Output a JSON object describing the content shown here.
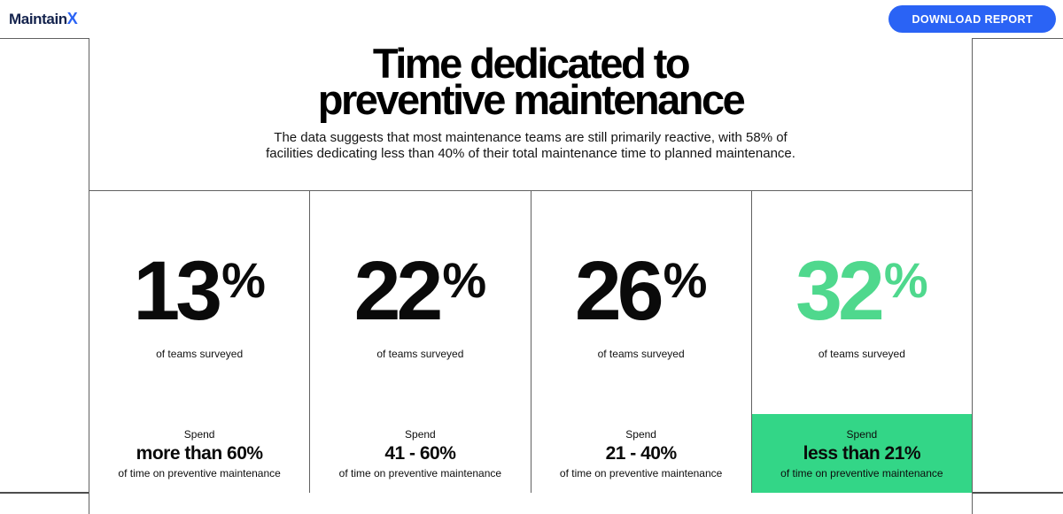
{
  "topbar": {
    "logo": {
      "text_main": "Maintain",
      "text_x": "X"
    },
    "download_button": "DOWNLOAD REPORT"
  },
  "section": {
    "title_line1": "Time dedicated to",
    "title_line2": "preventive maintenance",
    "subtitle": "The data suggests that most maintenance teams are still primarily reactive, with 58% of facilities dedicating less than 40% of their total maintenance time to planned maintenance."
  },
  "stats": {
    "columns": [
      {
        "value": "13",
        "unit": "%",
        "caption": "of teams surveyed",
        "label_prefix": "Spend",
        "label_main": "more than 60%",
        "label_suffix": "of time on preventive maintenance",
        "highlighted": false
      },
      {
        "value": "22",
        "unit": "%",
        "caption": "of teams surveyed",
        "label_prefix": "Spend",
        "label_main": "41 - 60%",
        "label_suffix": "of time on preventive maintenance",
        "highlighted": false
      },
      {
        "value": "26",
        "unit": "%",
        "caption": "of teams surveyed",
        "label_prefix": "Spend",
        "label_main": "21 - 40%",
        "label_suffix": "of time on preventive maintenance",
        "highlighted": false
      },
      {
        "value": "32",
        "unit": "%",
        "caption": "of teams surveyed",
        "label_prefix": "Spend",
        "label_main": "less than 21%",
        "label_suffix": "of time on preventive maintenance",
        "highlighted": true
      }
    ]
  },
  "colors": {
    "accent_green_bg": "#33d687",
    "accent_green_text": "#4fd88d",
    "button_blue": "#2a63f5",
    "logo_navy": "#14234d",
    "rule_gray": "#616161"
  }
}
